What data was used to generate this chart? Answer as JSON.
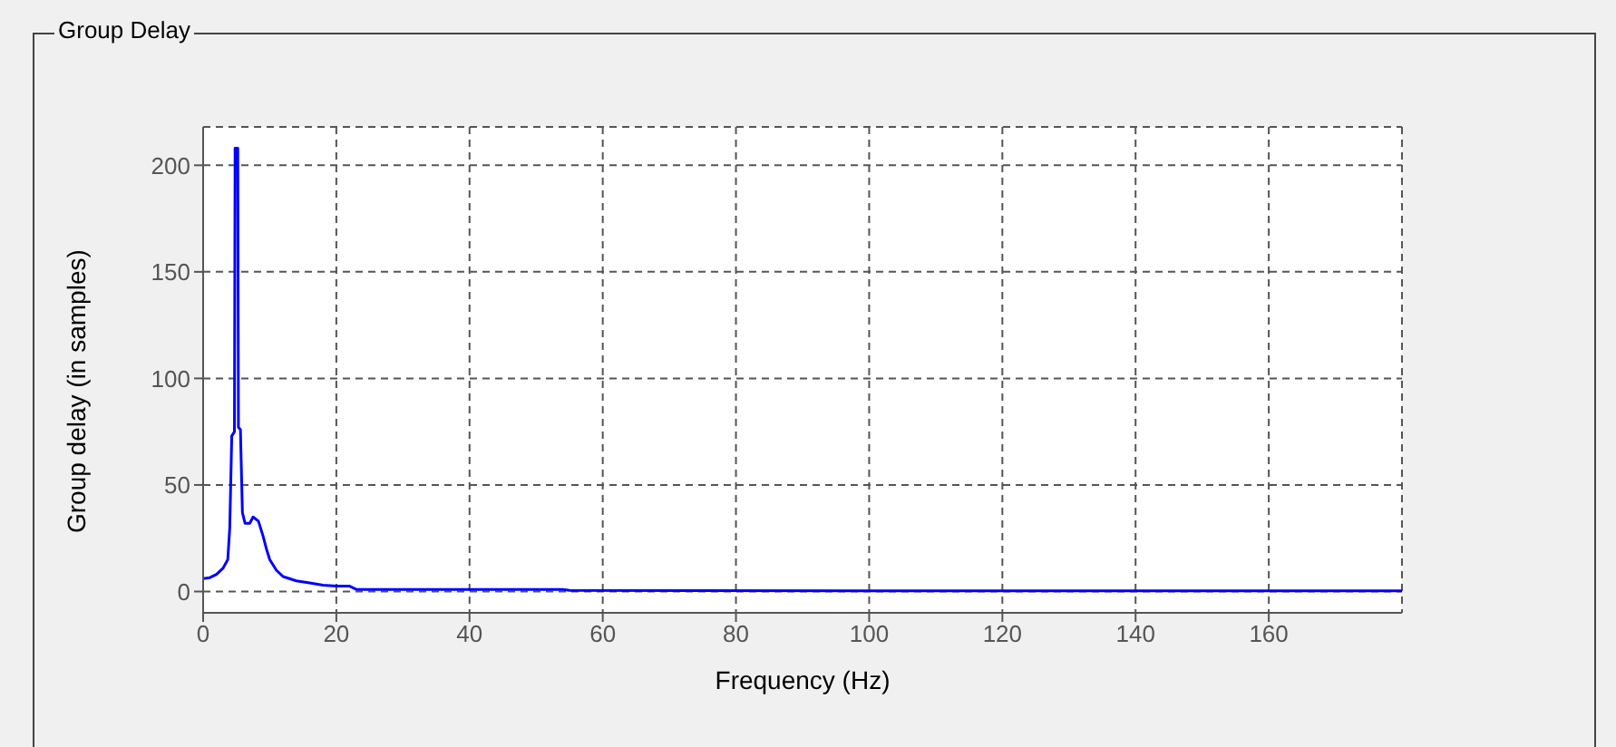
{
  "chart_data": {
    "type": "line",
    "title": "Group Delay",
    "xlabel": "Frequency (Hz)",
    "ylabel": "Group delay (in samples)",
    "x": [
      0,
      1,
      2,
      3,
      3.7,
      4.0,
      4.3,
      4.7,
      4.8,
      5.2,
      5.3,
      5.6,
      5.9,
      6.3,
      7,
      7.5,
      8.3,
      9,
      9.5,
      10,
      11,
      12,
      14,
      16,
      18,
      20,
      22,
      23,
      30,
      54,
      55,
      100,
      180
    ],
    "series": [
      {
        "color": "#0000ff",
        "values": [
          6,
          6.5,
          8,
          11,
          15,
          30,
          73,
          75,
          208,
          208,
          77,
          76,
          37,
          32,
          32,
          35,
          33,
          26,
          20,
          15,
          10,
          7,
          5,
          4,
          3,
          2.5,
          2.5,
          1,
          1,
          1,
          0.5,
          0.3,
          0.3
        ]
      }
    ],
    "xlim": [
      0,
      180
    ],
    "xticks": [
      0,
      20,
      40,
      60,
      80,
      100,
      120,
      140,
      160
    ],
    "ylim": [
      -10,
      218
    ],
    "yticks": [
      0,
      50,
      100,
      150,
      200
    ],
    "grid": true,
    "legend": false,
    "marker": "none",
    "line_style": "solid"
  }
}
